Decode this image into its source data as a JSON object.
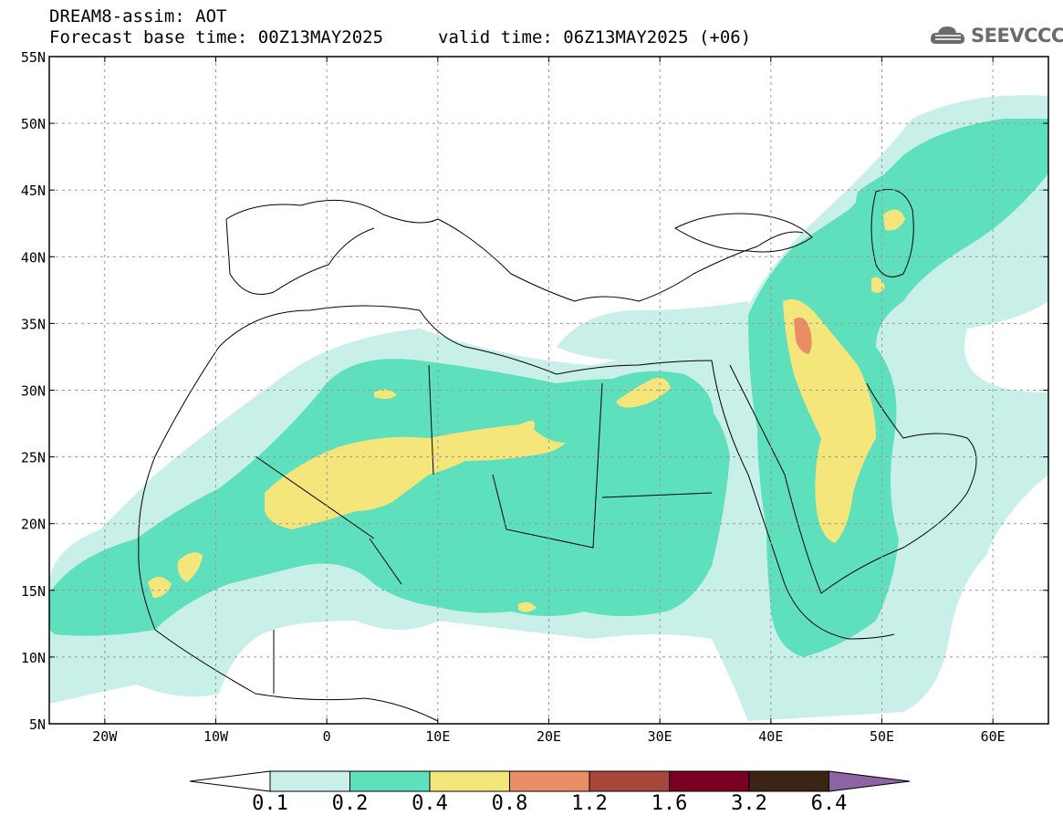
{
  "header": {
    "line1": "DREAM8-assim: AOT",
    "line2": "Forecast base time: 00Z13MAY2025",
    "line3": "valid time: 06Z13MAY2025 (+06)",
    "logo_text": "SEEVCCC",
    "logo_icon": "cloud-icon"
  },
  "map": {
    "lat_labels": [
      "55N",
      "50N",
      "45N",
      "40N",
      "35N",
      "30N",
      "25N",
      "20N",
      "15N",
      "10N",
      "5N"
    ],
    "lon_labels": [
      "20W",
      "10W",
      "0",
      "10E",
      "20E",
      "30E",
      "40E",
      "50E",
      "60E"
    ]
  },
  "colorbar": {
    "labels": [
      "0.1",
      "0.2",
      "0.4",
      "0.8",
      "1.2",
      "1.6",
      "3.2",
      "6.4"
    ],
    "colors": [
      "#c8f0e8",
      "#5fe0bc",
      "#f4e67a",
      "#e98d64",
      "#a8483c",
      "#7a0023",
      "#3c2414",
      "#8c64a4"
    ]
  },
  "colors": {
    "aot_0_1": "#c8f0e8",
    "aot_0_2": "#5fe0bc",
    "aot_0_4": "#f4e67a",
    "aot_0_8": "#e98d64",
    "aot_1_2": "#c8605a",
    "grid": "#9a9a9a"
  }
}
